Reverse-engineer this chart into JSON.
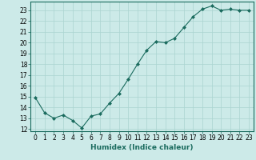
{
  "x": [
    0,
    1,
    2,
    3,
    4,
    5,
    6,
    7,
    8,
    9,
    10,
    11,
    12,
    13,
    14,
    15,
    16,
    17,
    18,
    19,
    20,
    21,
    22,
    23
  ],
  "y": [
    14.9,
    13.5,
    13.0,
    13.3,
    12.8,
    12.1,
    13.2,
    13.4,
    14.4,
    15.3,
    16.6,
    18.0,
    19.3,
    20.1,
    20.0,
    20.4,
    21.4,
    22.4,
    23.1,
    23.4,
    23.0,
    23.1,
    23.0,
    23.0
  ],
  "line_color": "#1a6b5e",
  "marker": "D",
  "marker_size": 2.0,
  "bg_color": "#cceae8",
  "grid_color": "#aad4d1",
  "xlabel": "Humidex (Indice chaleur)",
  "ylabel_ticks": [
    12,
    13,
    14,
    15,
    16,
    17,
    18,
    19,
    20,
    21,
    22,
    23
  ],
  "xlim": [
    -0.5,
    23.5
  ],
  "ylim": [
    11.8,
    23.8
  ],
  "tick_fontsize": 5.5,
  "xlabel_fontsize": 6.5
}
